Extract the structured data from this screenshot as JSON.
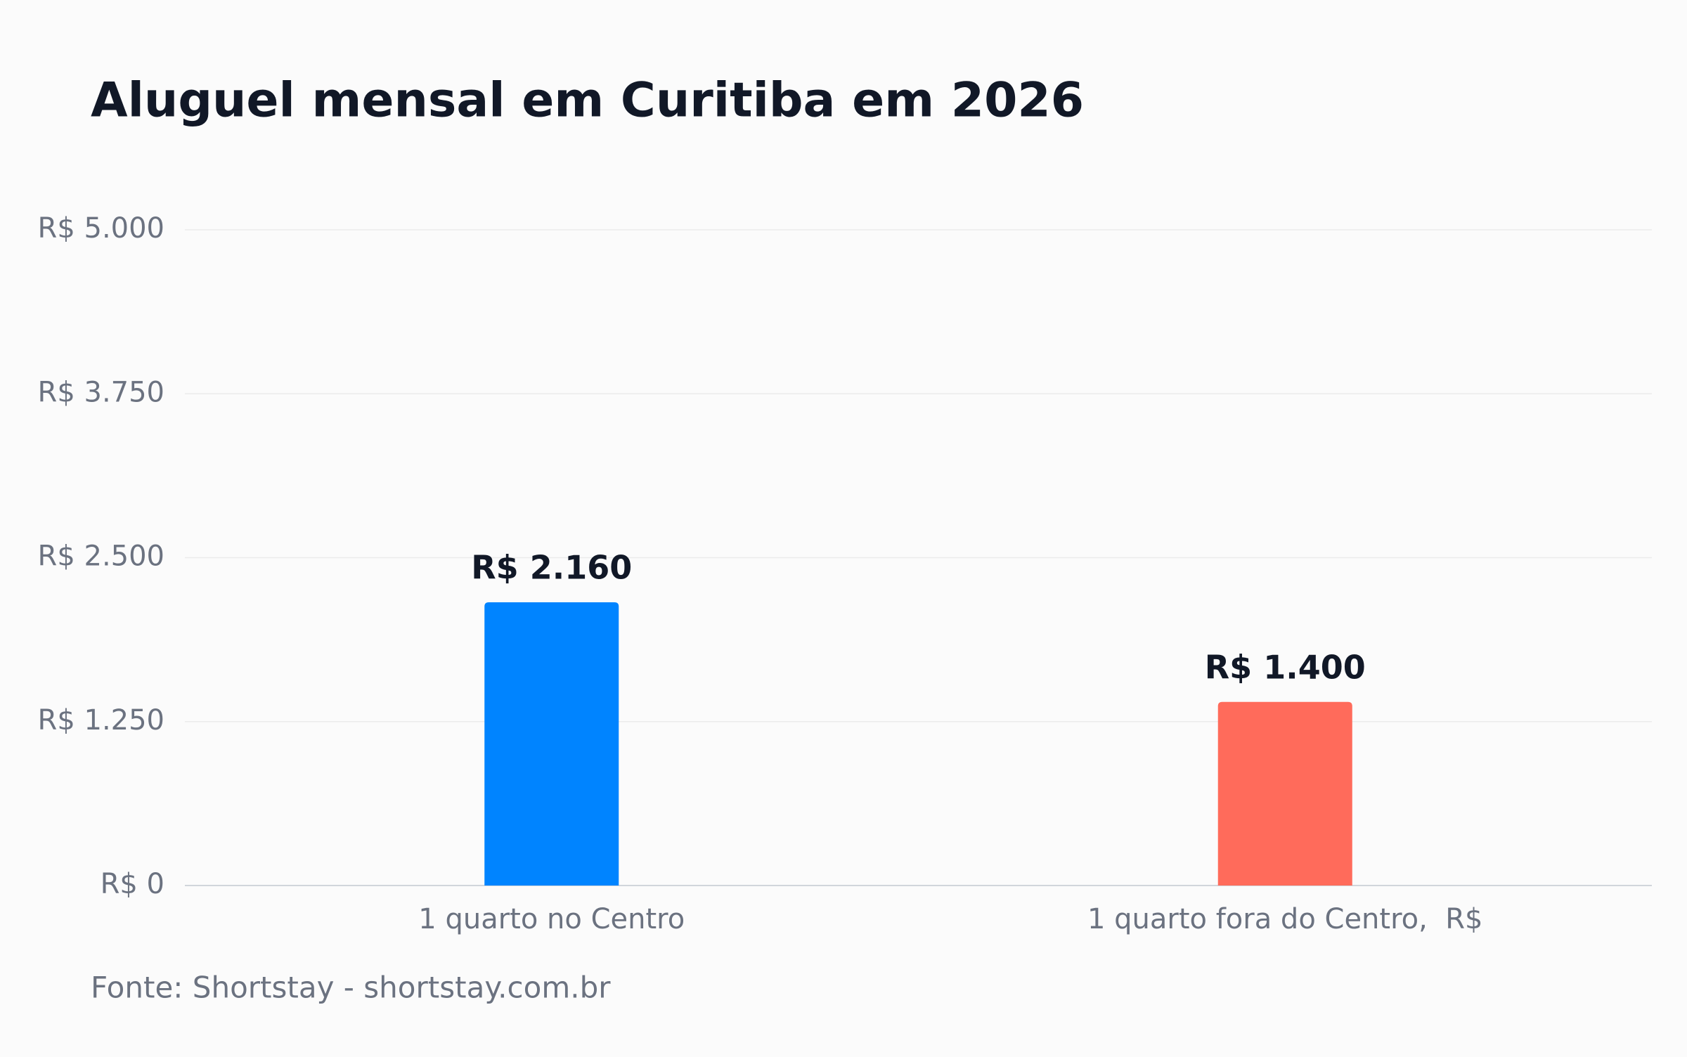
{
  "chart_data": {
    "type": "bar",
    "title": "Aluguel mensal em Curitiba em 2026",
    "categories": [
      "1 quarto no Centro",
      "1 quarto fora do Centro,  R$"
    ],
    "values": [
      2160,
      1400
    ],
    "value_labels": [
      "R$ 2.160",
      "R$ 1.400"
    ],
    "colors": [
      "#0084ff",
      "#ff6b5b"
    ],
    "ylim": [
      0,
      5000
    ],
    "yticks": [
      {
        "value": 0,
        "label": "R$ 0"
      },
      {
        "value": 1250,
        "label": "R$ 1.250"
      },
      {
        "value": 2500,
        "label": "R$ 2.500"
      },
      {
        "value": 3750,
        "label": "R$ 3.750"
      },
      {
        "value": 5000,
        "label": "R$ 5.000"
      }
    ],
    "grid": true,
    "source": "Fonte: Shortstay - shortstay.com.br"
  }
}
